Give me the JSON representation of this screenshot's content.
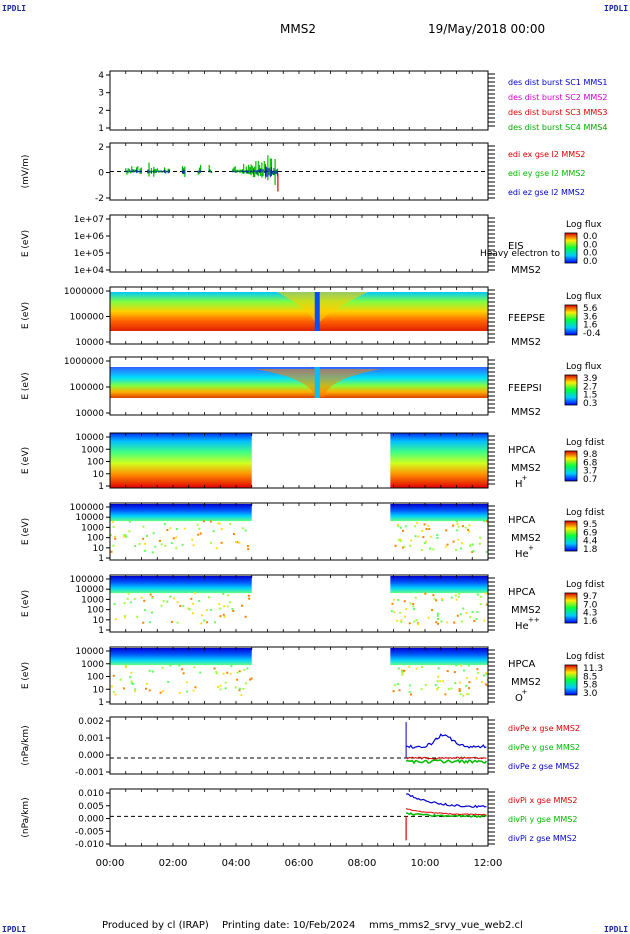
{
  "corners": {
    "tl": "IPDLI",
    "tr": "IPDLI",
    "bl": "IPDLI",
    "br": "IPDLI"
  },
  "header": {
    "mission": "MMS2",
    "datetime": "19/May/2018 00:00"
  },
  "footer": {
    "producer": "Produced by cl (IRAP)",
    "printing_date": "Printing date: 10/Feb/2024",
    "filename": "mms_mms2_srvy_vue_web2.cl"
  },
  "colors": {
    "mms1": "#0000cc",
    "mms2": "#cc00cc",
    "mms3": "#dd0000",
    "mms4": "#00aa00",
    "x": "#dd0000",
    "y": "#00bb00",
    "z": "#0000cc"
  },
  "chart_data": [
    {
      "type": "line",
      "id": "des-dist",
      "ylim": [
        0.8,
        4.5
      ],
      "yticks": [
        "1",
        "2",
        "3",
        "4"
      ],
      "xlabel": "",
      "ylabel": "",
      "series": [
        {
          "name": "des dist burst SC1 MMS1",
          "values": []
        },
        {
          "name": "des dist burst SC2 MMS2",
          "values": []
        },
        {
          "name": "des dist burst SC3 MMS3",
          "values": []
        },
        {
          "name": "des dist burst SC4 MMS4",
          "values": []
        }
      ]
    },
    {
      "type": "line",
      "id": "edi",
      "ylabel": "(mV/m)",
      "ylim": [
        -3,
        3
      ],
      "yticks": [
        "-2",
        "0",
        "2"
      ],
      "series": [
        {
          "name": "edi ex gse l2 MMS2"
        },
        {
          "name": "edi ey gse l2 MMS2"
        },
        {
          "name": "edi ez gse l2 MMS2"
        }
      ]
    },
    {
      "type": "heatmap",
      "id": "eis",
      "ylabel": "E (eV)",
      "ylim": [
        10000,
        10000000
      ],
      "yticks": [
        "1e+04",
        "1e+05",
        "1e+06",
        "1e+07"
      ],
      "instrument": "EIS",
      "sub": "MMS2",
      "overlay_label": "Heavy electron to",
      "cbar_title": "Log flux",
      "cbar_ticks": [
        "0.0",
        "0.0",
        "0.0",
        "0.0"
      ]
    },
    {
      "type": "heatmap",
      "id": "feepse",
      "ylabel": "E (eV)",
      "ylim": [
        10000,
        1000000
      ],
      "yticks": [
        "10000",
        "100000",
        "1000000"
      ],
      "instrument": "FEEPSE",
      "sub": "MMS2",
      "cbar_title": "Log flux",
      "cbar_ticks": [
        "5.6",
        "3.6",
        "1.6",
        "-0.4"
      ]
    },
    {
      "type": "heatmap",
      "id": "feepsi",
      "ylabel": "E (eV)",
      "ylim": [
        10000,
        1000000
      ],
      "yticks": [
        "10000",
        "100000",
        "1000000"
      ],
      "instrument": "FEEPSI",
      "sub": "MMS2",
      "cbar_title": "Log flux",
      "cbar_ticks": [
        "3.9",
        "2.7",
        "1.5",
        "0.3"
      ]
    },
    {
      "type": "heatmap",
      "id": "hpca-h",
      "ylabel": "E (eV)",
      "ylim": [
        1,
        30000
      ],
      "yticks": [
        "1",
        "10",
        "100",
        "1000",
        "10000"
      ],
      "instrument": "HPCA",
      "sub": "MMS2",
      "species": "H",
      "charge": "+",
      "cbar_title": "Log fdist",
      "cbar_ticks": [
        "9.8",
        "6.8",
        "3.7",
        "0.7"
      ]
    },
    {
      "type": "heatmap",
      "id": "hpca-he",
      "ylabel": "E (eV)",
      "ylim": [
        1,
        100000
      ],
      "yticks": [
        "1",
        "10",
        "100",
        "1000",
        "10000",
        "100000"
      ],
      "instrument": "HPCA",
      "sub": "MMS2",
      "species": "He",
      "charge": "+",
      "cbar_title": "Log fdist",
      "cbar_ticks": [
        "9.5",
        "6.9",
        "4.4",
        "1.8"
      ]
    },
    {
      "type": "heatmap",
      "id": "hpca-hepp",
      "ylabel": "E (eV)",
      "ylim": [
        1,
        100000
      ],
      "yticks": [
        "1",
        "10",
        "100",
        "1000",
        "10000",
        "100000"
      ],
      "instrument": "HPCA",
      "sub": "MMS2",
      "species": "He",
      "charge": "++",
      "cbar_title": "Log fdist",
      "cbar_ticks": [
        "9.7",
        "7.0",
        "4.3",
        "1.6"
      ]
    },
    {
      "type": "heatmap",
      "id": "hpca-o",
      "ylabel": "E (eV)",
      "ylim": [
        1,
        30000
      ],
      "yticks": [
        "1",
        "10",
        "100",
        "1000",
        "10000"
      ],
      "instrument": "HPCA",
      "sub": "MMS2",
      "species": "O",
      "charge": "+",
      "cbar_title": "Log fdist",
      "cbar_ticks": [
        "11.3",
        "8.5",
        "5.8",
        "3.0"
      ]
    },
    {
      "type": "line",
      "id": "divpe",
      "ylabel": "(nPa/km)",
      "ylim": [
        -0.0015,
        0.0027
      ],
      "yticks": [
        "-0.001",
        "0.000",
        "0.001",
        "0.002"
      ],
      "series": [
        {
          "name": "divPe x gse MMS2"
        },
        {
          "name": "divPe y gse MMS2"
        },
        {
          "name": "divPe z gse MMS2"
        }
      ]
    },
    {
      "type": "line",
      "id": "divpi",
      "ylabel": "(nPa/km)",
      "ylim": [
        -0.016,
        0.013
      ],
      "yticks": [
        "-0.010",
        "-0.005",
        "0.000",
        "0.005",
        "0.010"
      ],
      "series": [
        {
          "name": "divPi x gse MMS2"
        },
        {
          "name": "divPi y gse MMS2"
        },
        {
          "name": "divPi z gse MMS2"
        }
      ]
    }
  ],
  "xaxis": {
    "ticks": [
      "00:00",
      "02:00",
      "04:00",
      "06:00",
      "08:00",
      "10:00",
      "12:00"
    ],
    "range_hours": [
      0,
      12
    ]
  }
}
